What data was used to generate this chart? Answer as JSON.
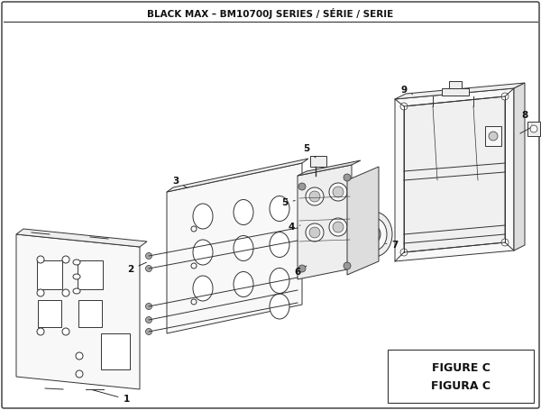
{
  "title": "BLACK MAX – BM10700J SERIES / SÉRIE / SERIE",
  "figure_label": "FIGURE C",
  "figura_label": "FIGURA C",
  "bg_color": "#ffffff",
  "line_color": "#333333",
  "text_color": "#111111",
  "title_fontsize": 7.5,
  "label_fontsize": 7.5,
  "fig_label_fontsize": 9.0,
  "lw": 0.7
}
